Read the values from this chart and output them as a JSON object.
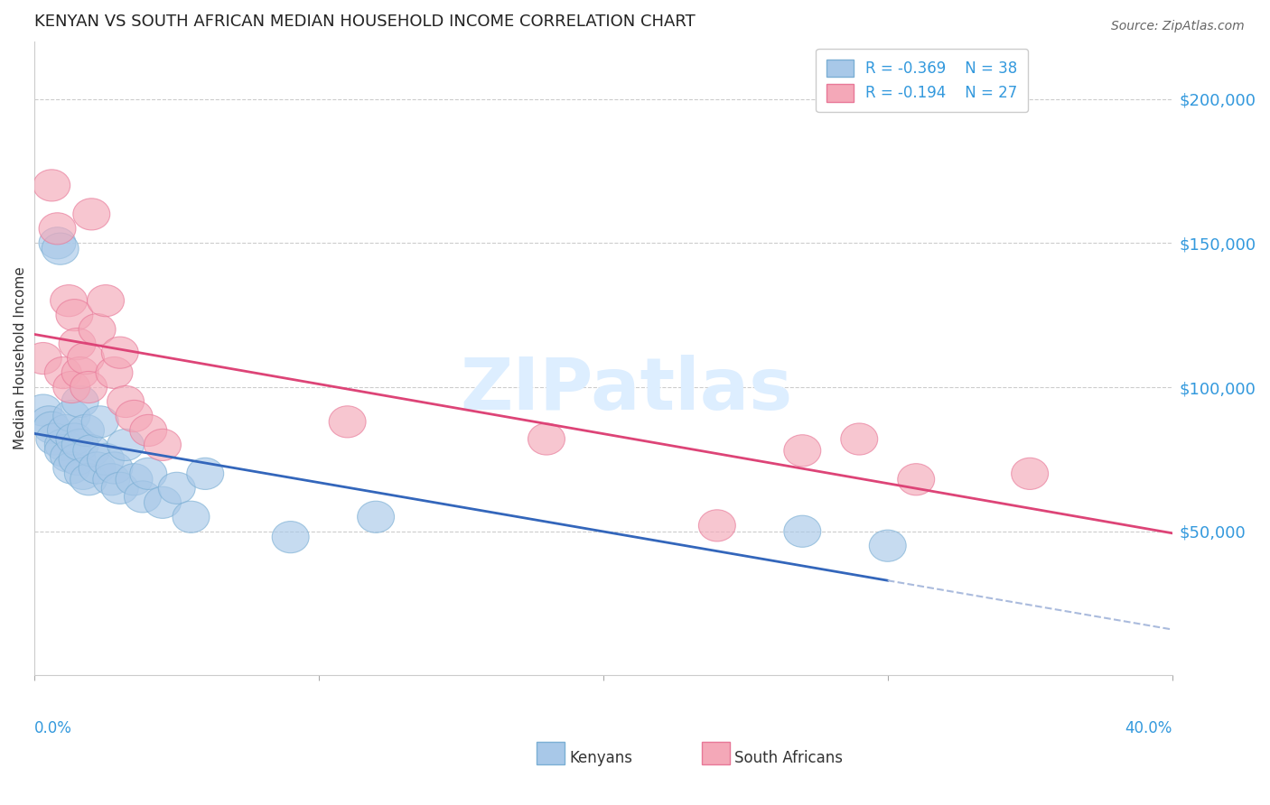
{
  "title": "KENYAN VS SOUTH AFRICAN MEDIAN HOUSEHOLD INCOME CORRELATION CHART",
  "source": "Source: ZipAtlas.com",
  "ylabel": "Median Household Income",
  "background_color": "#ffffff",
  "blue_fill": "#a8c8e8",
  "blue_edge": "#7bafd4",
  "pink_fill": "#f4a8b8",
  "pink_edge": "#e87898",
  "blue_line_color": "#3366bb",
  "pink_line_color": "#dd4477",
  "blue_dash_color": "#aabbdd",
  "axis_label_color": "#3399dd",
  "legend_text_color": "#3399dd",
  "grid_color": "#cccccc",
  "title_color": "#222222",
  "source_color": "#666666",
  "watermark_color": "#ddeeff",
  "watermark": "ZIPatlas",
  "yticks": [
    50000,
    100000,
    150000,
    200000
  ],
  "ytick_labels": [
    "$50,000",
    "$100,000",
    "$150,000",
    "$200,000"
  ],
  "xlim": [
    0.0,
    0.4
  ],
  "ylim": [
    0,
    220000
  ],
  "legend_r1": "R = -0.369",
  "legend_n1": "N = 38",
  "legend_r2": "R = -0.194",
  "legend_n2": "N = 27",
  "kenyans_x": [
    0.003,
    0.005,
    0.006,
    0.007,
    0.008,
    0.009,
    0.01,
    0.01,
    0.011,
    0.012,
    0.013,
    0.013,
    0.014,
    0.015,
    0.016,
    0.016,
    0.017,
    0.018,
    0.019,
    0.02,
    0.022,
    0.023,
    0.025,
    0.027,
    0.028,
    0.03,
    0.032,
    0.035,
    0.038,
    0.04,
    0.045,
    0.05,
    0.055,
    0.06,
    0.09,
    0.12,
    0.27,
    0.3
  ],
  "kenyans_y": [
    92000,
    88000,
    86000,
    82000,
    150000,
    148000,
    80000,
    78000,
    85000,
    76000,
    90000,
    72000,
    82000,
    75000,
    95000,
    80000,
    70000,
    85000,
    68000,
    78000,
    72000,
    88000,
    75000,
    68000,
    72000,
    65000,
    80000,
    68000,
    62000,
    70000,
    60000,
    65000,
    55000,
    70000,
    48000,
    55000,
    50000,
    45000
  ],
  "sa_x": [
    0.003,
    0.006,
    0.008,
    0.01,
    0.012,
    0.013,
    0.014,
    0.015,
    0.016,
    0.018,
    0.019,
    0.02,
    0.022,
    0.025,
    0.028,
    0.03,
    0.032,
    0.035,
    0.04,
    0.045,
    0.11,
    0.18,
    0.24,
    0.27,
    0.29,
    0.31,
    0.35
  ],
  "sa_y": [
    110000,
    170000,
    155000,
    105000,
    130000,
    100000,
    125000,
    115000,
    105000,
    110000,
    100000,
    160000,
    120000,
    130000,
    105000,
    112000,
    95000,
    90000,
    85000,
    80000,
    88000,
    82000,
    52000,
    78000,
    82000,
    68000,
    70000
  ]
}
